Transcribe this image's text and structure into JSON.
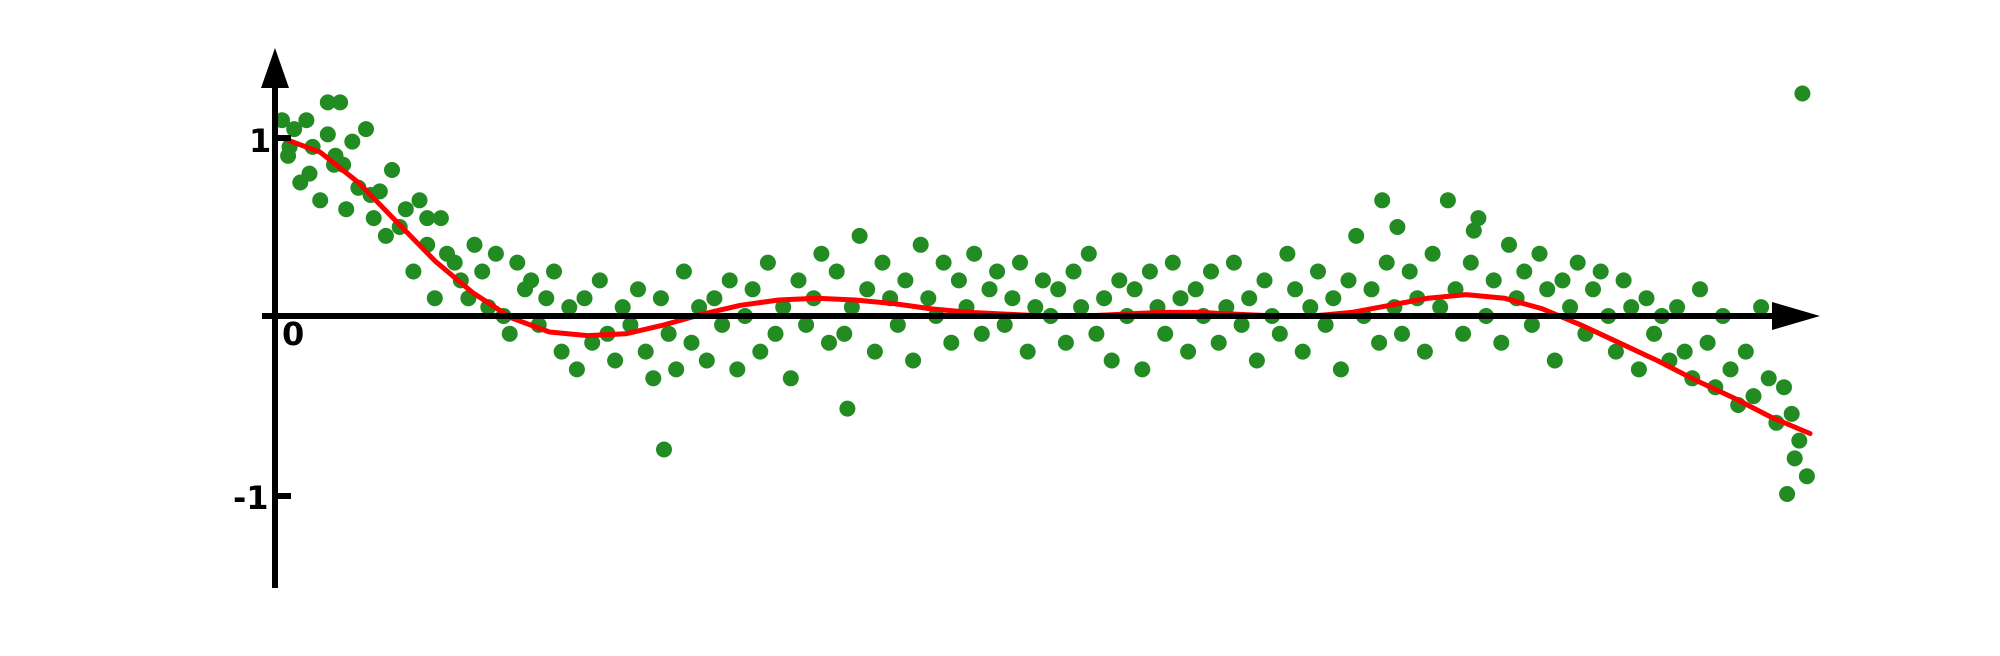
{
  "chart_data": {
    "type": "scatter",
    "title": "",
    "xlabel": "",
    "ylabel": "",
    "xlim": [
      0,
      1
    ],
    "ylim": [
      -1.5,
      1.5
    ],
    "grid": false,
    "legend": "none",
    "tick_labels": {
      "origin": "0",
      "y_pos": "1",
      "y_neg": "-1"
    },
    "colors": {
      "points": "#228B22",
      "fit": "#ff0000",
      "axes": "#000000"
    },
    "series": [
      {
        "type": "scatter",
        "x": [
          0.0,
          0.004,
          0.008,
          0.012,
          0.016,
          0.02,
          0.025,
          0.03,
          0.034,
          0.038,
          0.042,
          0.046,
          0.05,
          0.055,
          0.06,
          0.064,
          0.068,
          0.072,
          0.077,
          0.081,
          0.086,
          0.09,
          0.095,
          0.1,
          0.104,
          0.108,
          0.113,
          0.117,
          0.122,
          0.126,
          0.131,
          0.135,
          0.14,
          0.145,
          0.149,
          0.154,
          0.159,
          0.163,
          0.168,
          0.173,
          0.178,
          0.183,
          0.188,
          0.193,
          0.198,
          0.203,
          0.208,
          0.213,
          0.218,
          0.223,
          0.228,
          0.233,
          0.238,
          0.243,
          0.248,
          0.253,
          0.258,
          0.263,
          0.268,
          0.273,
          0.278,
          0.283,
          0.288,
          0.293,
          0.298,
          0.303,
          0.308,
          0.313,
          0.318,
          0.323,
          0.328,
          0.333,
          0.338,
          0.343,
          0.348,
          0.353,
          0.358,
          0.363,
          0.368,
          0.373,
          0.378,
          0.383,
          0.388,
          0.393,
          0.398,
          0.403,
          0.408,
          0.413,
          0.418,
          0.423,
          0.428,
          0.433,
          0.438,
          0.443,
          0.448,
          0.453,
          0.458,
          0.463,
          0.468,
          0.473,
          0.478,
          0.483,
          0.488,
          0.493,
          0.498,
          0.503,
          0.508,
          0.513,
          0.518,
          0.523,
          0.528,
          0.533,
          0.538,
          0.543,
          0.548,
          0.553,
          0.558,
          0.563,
          0.568,
          0.573,
          0.578,
          0.583,
          0.588,
          0.593,
          0.598,
          0.603,
          0.608,
          0.613,
          0.618,
          0.623,
          0.628,
          0.633,
          0.638,
          0.643,
          0.648,
          0.653,
          0.658,
          0.663,
          0.668,
          0.673,
          0.678,
          0.683,
          0.688,
          0.693,
          0.698,
          0.703,
          0.708,
          0.713,
          0.718,
          0.723,
          0.728,
          0.733,
          0.738,
          0.743,
          0.748,
          0.753,
          0.758,
          0.763,
          0.768,
          0.773,
          0.778,
          0.783,
          0.788,
          0.793,
          0.798,
          0.803,
          0.808,
          0.813,
          0.818,
          0.823,
          0.828,
          0.833,
          0.838,
          0.843,
          0.848,
          0.853,
          0.858,
          0.863,
          0.868,
          0.873,
          0.878,
          0.883,
          0.888,
          0.893,
          0.898,
          0.903,
          0.908,
          0.913,
          0.918,
          0.923,
          0.928,
          0.933,
          0.938,
          0.943,
          0.948,
          0.953,
          0.958,
          0.963,
          0.968,
          0.973,
          0.978,
          0.983,
          0.988,
          0.993,
          0.998,
          0.985,
          0.99,
          0.995,
          0.03,
          0.04,
          0.25,
          0.37,
          0.72,
          0.73,
          0.78,
          0.005,
          0.018,
          0.035,
          0.058,
          0.095
        ],
        "y": [
          1.1,
          0.9,
          1.05,
          0.75,
          1.1,
          0.95,
          0.65,
          1.02,
          0.85,
          1.2,
          0.6,
          0.98,
          0.72,
          1.05,
          0.55,
          0.7,
          0.45,
          0.82,
          0.5,
          0.6,
          0.25,
          0.65,
          0.4,
          0.1,
          0.55,
          0.35,
          0.3,
          0.2,
          0.1,
          0.4,
          0.25,
          0.05,
          0.35,
          0.0,
          -0.1,
          0.3,
          0.15,
          0.2,
          -0.05,
          0.1,
          0.25,
          -0.2,
          0.05,
          -0.3,
          0.1,
          -0.15,
          0.2,
          -0.1,
          -0.25,
          0.05,
          -0.05,
          0.15,
          -0.2,
          -0.35,
          0.1,
          -0.1,
          -0.3,
          0.25,
          -0.15,
          0.05,
          -0.25,
          0.1,
          -0.05,
          0.2,
          -0.3,
          0.0,
          0.15,
          -0.2,
          0.3,
          -0.1,
          0.05,
          -0.35,
          0.2,
          -0.05,
          0.1,
          0.35,
          -0.15,
          0.25,
          -0.1,
          0.05,
          0.45,
          0.15,
          -0.2,
          0.3,
          0.1,
          -0.05,
          0.2,
          -0.25,
          0.4,
          0.1,
          0.0,
          0.3,
          -0.15,
          0.2,
          0.05,
          0.35,
          -0.1,
          0.15,
          0.25,
          -0.05,
          0.1,
          0.3,
          -0.2,
          0.05,
          0.2,
          0.0,
          0.15,
          -0.15,
          0.25,
          0.05,
          0.35,
          -0.1,
          0.1,
          -0.25,
          0.2,
          0.0,
          0.15,
          -0.3,
          0.25,
          0.05,
          -0.1,
          0.3,
          0.1,
          -0.2,
          0.15,
          0.0,
          0.25,
          -0.15,
          0.05,
          0.3,
          -0.05,
          0.1,
          -0.25,
          0.2,
          0.0,
          -0.1,
          0.35,
          0.15,
          -0.2,
          0.05,
          0.25,
          -0.05,
          0.1,
          -0.3,
          0.2,
          0.45,
          0.0,
          0.15,
          -0.15,
          0.3,
          0.05,
          -0.1,
          0.25,
          0.1,
          -0.2,
          0.35,
          0.05,
          0.65,
          0.15,
          -0.1,
          0.3,
          0.55,
          0.0,
          0.2,
          -0.15,
          0.4,
          0.1,
          0.25,
          -0.05,
          0.35,
          0.15,
          -0.25,
          0.2,
          0.05,
          0.3,
          -0.1,
          0.15,
          0.25,
          0.0,
          -0.2,
          0.2,
          0.05,
          -0.3,
          0.1,
          -0.1,
          0.0,
          -0.25,
          0.05,
          -0.2,
          -0.35,
          0.15,
          -0.15,
          -0.4,
          0.0,
          -0.3,
          -0.5,
          -0.2,
          -0.45,
          0.05,
          -0.35,
          -0.6,
          -0.4,
          -0.55,
          -0.7,
          -0.9,
          -1.0,
          -0.8,
          1.25,
          1.2,
          0.85,
          -0.75,
          -0.52,
          0.65,
          0.5,
          0.48,
          0.95,
          0.8,
          0.9,
          0.68,
          0.55
        ],
        "count_note": ""
      },
      {
        "type": "line",
        "x": [
          0.0,
          0.025,
          0.05,
          0.075,
          0.1,
          0.125,
          0.15,
          0.175,
          0.2,
          0.225,
          0.25,
          0.275,
          0.3,
          0.325,
          0.35,
          0.375,
          0.4,
          0.425,
          0.45,
          0.475,
          0.5,
          0.525,
          0.55,
          0.575,
          0.6,
          0.625,
          0.65,
          0.675,
          0.7,
          0.725,
          0.75,
          0.775,
          0.8,
          0.825,
          0.85,
          0.875,
          0.9,
          0.925,
          0.95,
          0.975,
          1.0
        ],
        "y": [
          1.0,
          0.92,
          0.75,
          0.53,
          0.31,
          0.13,
          -0.01,
          -0.09,
          -0.11,
          -0.1,
          -0.05,
          0.01,
          0.06,
          0.09,
          0.1,
          0.09,
          0.07,
          0.04,
          0.02,
          0.01,
          0.0,
          0.0,
          0.01,
          0.02,
          0.02,
          0.01,
          0.0,
          0.0,
          0.02,
          0.06,
          0.1,
          0.12,
          0.1,
          0.04,
          -0.05,
          -0.15,
          -0.25,
          -0.36,
          -0.46,
          -0.57,
          -0.66
        ]
      }
    ]
  }
}
